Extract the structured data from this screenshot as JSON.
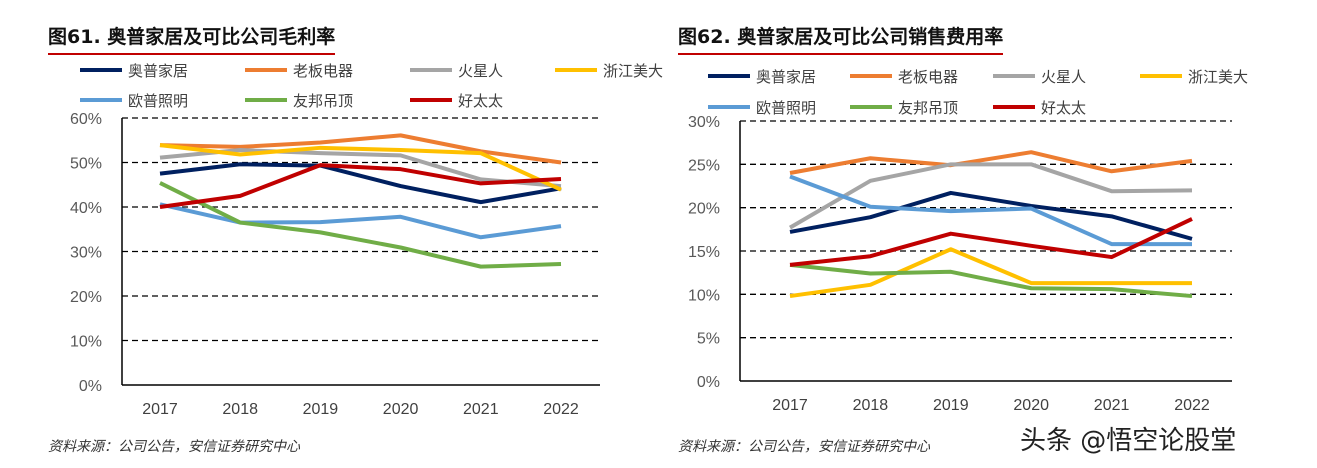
{
  "charts_meta": [
    {
      "title": "图61. 奥普家居及可比公司毛利率",
      "source": "资料来源：公司公告，安信证券研究中心"
    },
    {
      "title": "图62. 奥普家居及可比公司销售费用率",
      "source": "资料来源：公司公告，安信证券研究中心"
    }
  ],
  "watermark": "头条 @悟空论股堂",
  "chart_data": [
    {
      "type": "line",
      "title": "图61. 奥普家居及可比公司毛利率",
      "categories": [
        "2017",
        "2018",
        "2019",
        "2020",
        "2021",
        "2022"
      ],
      "ylim": [
        0,
        60
      ],
      "yticks": [
        0,
        10,
        20,
        30,
        40,
        50,
        60
      ],
      "yunit": "%",
      "grid": "dashed horizontal",
      "legend": "top",
      "series": [
        {
          "name": "奥普家居",
          "color": "#002060",
          "values": [
            47.5,
            49.6,
            49.3,
            44.7,
            41.1,
            44.2
          ]
        },
        {
          "name": "老板电器",
          "color": "#ed7d31",
          "values": [
            53.9,
            53.5,
            54.5,
            56.1,
            52.5,
            50.0
          ]
        },
        {
          "name": "火星人",
          "color": "#a5a5a5",
          "values": [
            51.1,
            52.8,
            52.1,
            51.6,
            46.2,
            44.7
          ]
        },
        {
          "name": "浙江美大",
          "color": "#ffc000",
          "values": [
            53.9,
            51.8,
            53.3,
            52.8,
            52.1,
            43.9
          ]
        },
        {
          "name": "欧普照明",
          "color": "#5b9bd5",
          "values": [
            40.6,
            36.5,
            36.6,
            37.8,
            33.2,
            35.7
          ]
        },
        {
          "name": "友邦吊顶",
          "color": "#70ad47",
          "values": [
            45.4,
            36.5,
            34.3,
            30.9,
            26.6,
            27.2
          ]
        },
        {
          "name": "好太太",
          "color": "#c00000",
          "values": [
            40.0,
            42.5,
            49.4,
            48.5,
            45.3,
            46.3
          ]
        }
      ]
    },
    {
      "type": "line",
      "title": "图62. 奥普家居及可比公司销售费用率",
      "categories": [
        "2017",
        "2018",
        "2019",
        "2020",
        "2021",
        "2022"
      ],
      "ylim": [
        0,
        30
      ],
      "yticks": [
        0,
        5,
        10,
        15,
        20,
        25,
        30
      ],
      "yunit": "%",
      "grid": "dashed horizontal",
      "legend": "top",
      "series": [
        {
          "name": "奥普家居",
          "color": "#002060",
          "values": [
            17.2,
            18.9,
            21.7,
            20.2,
            19.0,
            16.4
          ]
        },
        {
          "name": "老板电器",
          "color": "#ed7d31",
          "values": [
            24.0,
            25.7,
            24.9,
            26.4,
            24.2,
            25.4
          ]
        },
        {
          "name": "火星人",
          "color": "#a5a5a5",
          "values": [
            17.7,
            23.1,
            25.0,
            25.0,
            21.9,
            22.0
          ]
        },
        {
          "name": "浙江美大",
          "color": "#ffc000",
          "values": [
            9.8,
            11.1,
            15.2,
            11.3,
            11.3,
            11.3
          ]
        },
        {
          "name": "欧普照明",
          "color": "#5b9bd5",
          "values": [
            23.6,
            20.1,
            19.6,
            19.9,
            15.8,
            15.8
          ]
        },
        {
          "name": "友邦吊顶",
          "color": "#70ad47",
          "values": [
            13.4,
            12.4,
            12.6,
            10.7,
            10.6,
            9.8
          ]
        },
        {
          "name": "好太太",
          "color": "#c00000",
          "values": [
            13.4,
            14.4,
            17.0,
            15.6,
            14.3,
            18.7
          ]
        }
      ]
    }
  ]
}
